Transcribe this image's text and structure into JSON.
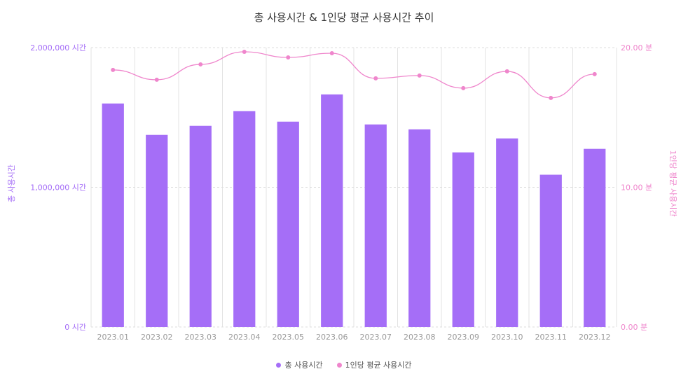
{
  "chart_data": {
    "type": "bar",
    "title": "총 사용시간 & 1인당 평균 사용시간 추이",
    "categories": [
      "2023.01",
      "2023.02",
      "2023.03",
      "2023.04",
      "2023.05",
      "2023.06",
      "2023.07",
      "2023.08",
      "2023.09",
      "2023.10",
      "2023.11",
      "2023.12"
    ],
    "series": [
      {
        "name": "총 사용시간",
        "type": "bar",
        "axis": "left",
        "color": "#a56ef7",
        "values": [
          1600000,
          1375000,
          1440000,
          1545000,
          1470000,
          1665000,
          1450000,
          1415000,
          1250000,
          1350000,
          1090000,
          1275000
        ]
      },
      {
        "name": "1인당 평균 사용시간",
        "type": "line",
        "axis": "right",
        "color": "#ef86cc",
        "values": [
          18.4,
          17.7,
          18.8,
          19.7,
          19.3,
          19.6,
          17.8,
          18.0,
          17.1,
          18.3,
          16.4,
          18.1
        ]
      }
    ],
    "y_left": {
      "label": "총 사용시간",
      "ylim": [
        0,
        2000000
      ],
      "ticks": [
        "0 시간",
        "1,000,000 시간",
        "2,000,000 시간"
      ],
      "color": "#a56ef7"
    },
    "y_right": {
      "label": "1인당 평균 사용시간",
      "ylim": [
        0,
        20
      ],
      "ticks": [
        "0.00 분",
        "10.00 분",
        "20.00 분"
      ],
      "color": "#ef86cc"
    },
    "legend": "bottom-center",
    "grid": true
  }
}
